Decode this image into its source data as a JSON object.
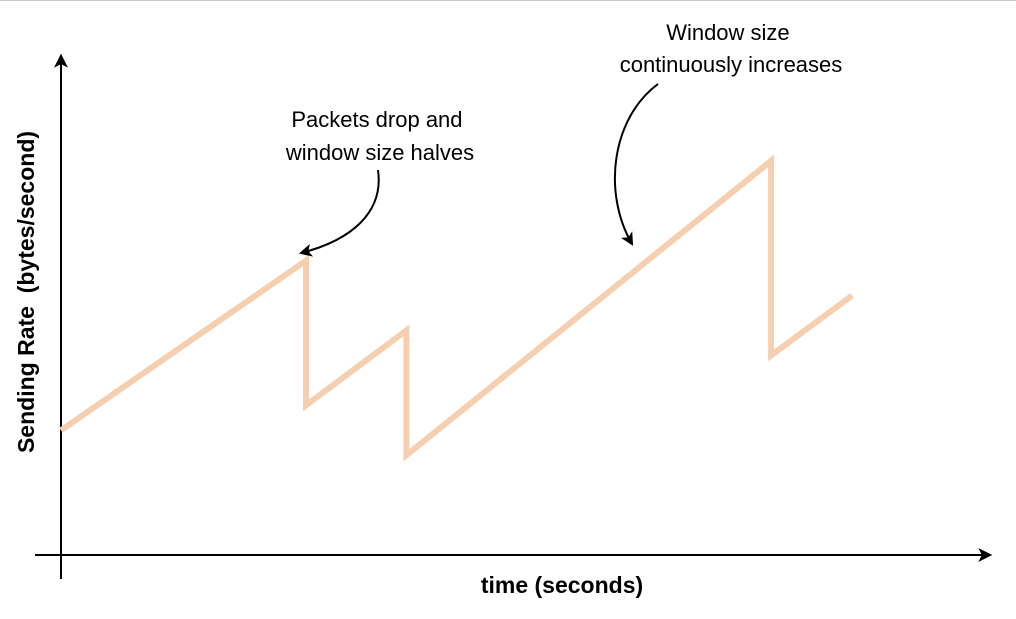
{
  "chart_data": {
    "type": "line",
    "title": "",
    "xlabel": "time (seconds)",
    "ylabel": "Sending Rate  (bytes/second)",
    "grid": false,
    "legend": "none",
    "x_ticks": [],
    "y_ticks": [],
    "xlim": [
      0,
      100
    ],
    "ylim": [
      0,
      100
    ],
    "series": [
      {
        "color": "#f5cfb0",
        "points": [
          {
            "x": 0.0,
            "y": 25.0
          },
          {
            "x": 26.6,
            "y": 59.0
          },
          {
            "x": 26.6,
            "y": 30.0
          },
          {
            "x": 37.5,
            "y": 45.0
          },
          {
            "x": 37.5,
            "y": 20.0
          },
          {
            "x": 77.1,
            "y": 79.0
          },
          {
            "x": 77.1,
            "y": 40.0
          },
          {
            "x": 85.9,
            "y": 52.0
          }
        ]
      }
    ],
    "annotations": [
      {
        "lines": [
          "Packets drop and",
          "window size halves"
        ],
        "target": {
          "x": 26.6,
          "y": 59.0
        }
      },
      {
        "lines": [
          "Window size",
          "continuously increases"
        ],
        "target": {
          "x": 64.0,
          "y": 63.0
        }
      }
    ]
  }
}
